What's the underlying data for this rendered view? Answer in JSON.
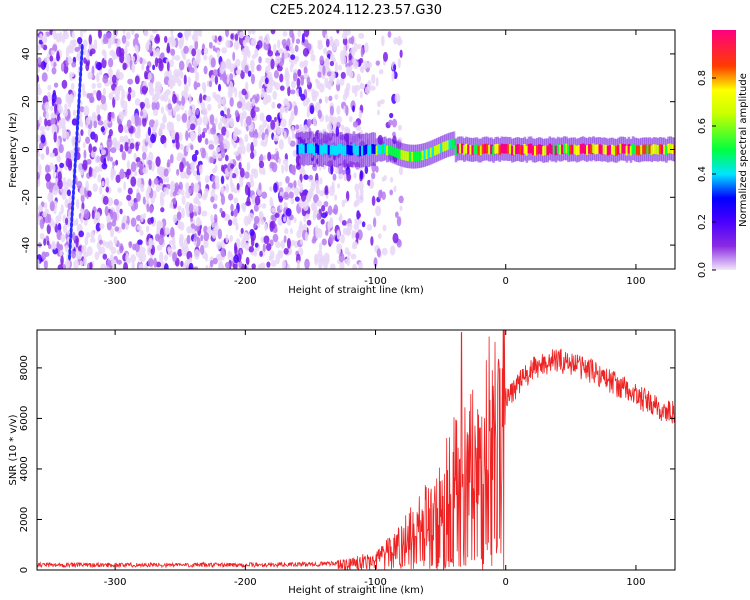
{
  "title": "C2E5.2024.112.23.57.G30",
  "chart_data": [
    {
      "type": "heatmap",
      "xlabel": "Height of straight line (km)",
      "ylabel": "Frequency (Hz)",
      "xlim": [
        -360,
        130
      ],
      "ylim": [
        -50,
        50
      ],
      "xticks": [
        -300,
        -200,
        -100,
        0,
        100
      ],
      "yticks": [
        -40,
        -20,
        0,
        20,
        40
      ],
      "colorbar": {
        "label": "Normalized spectral amplitude",
        "range": [
          0,
          1
        ],
        "ticks": [
          0.0,
          0.2,
          0.4,
          0.6,
          0.8
        ],
        "colors": [
          "#f2e6fb",
          "#8a2be2",
          "#4a00ff",
          "#0000ff",
          "#00e5ff",
          "#00ff40",
          "#c8ff00",
          "#ffff00",
          "#ff3c00",
          "#ff0080"
        ]
      },
      "features": {
        "noise_region_x": [
          -360,
          -110
        ],
        "noise_level": 0.2,
        "line_start_x": -160,
        "line_center_hz": 0,
        "line_peak_x": [
          -40,
          100
        ],
        "line_peak_level": 0.95
      }
    },
    {
      "type": "line",
      "xlabel": "Height of straight line (km)",
      "ylabel": "SNR (10 * v/v)",
      "xlim": [
        -360,
        130
      ],
      "ylim": [
        0,
        9500
      ],
      "xticks": [
        -300,
        -200,
        -100,
        0,
        100
      ],
      "yticks": [
        0,
        2000,
        4000,
        6000,
        8000
      ],
      "series": [
        {
          "color": "#ee2222",
          "x": [
            -360,
            -300,
            -250,
            -200,
            -150,
            -120,
            -100,
            -90,
            -80,
            -70,
            -60,
            -50,
            -40,
            -35,
            -30,
            -20,
            -10,
            0,
            10,
            20,
            30,
            40,
            50,
            60,
            70,
            80,
            90,
            100,
            110,
            120,
            130
          ],
          "y": [
            200,
            200,
            200,
            200,
            220,
            300,
            500,
            800,
            1200,
            1700,
            2300,
            3000,
            3800,
            4200,
            4500,
            5300,
            6100,
            6800,
            7400,
            7900,
            8200,
            8300,
            8200,
            8000,
            7800,
            7500,
            7200,
            6900,
            6600,
            6300,
            6200
          ]
        }
      ]
    }
  ]
}
